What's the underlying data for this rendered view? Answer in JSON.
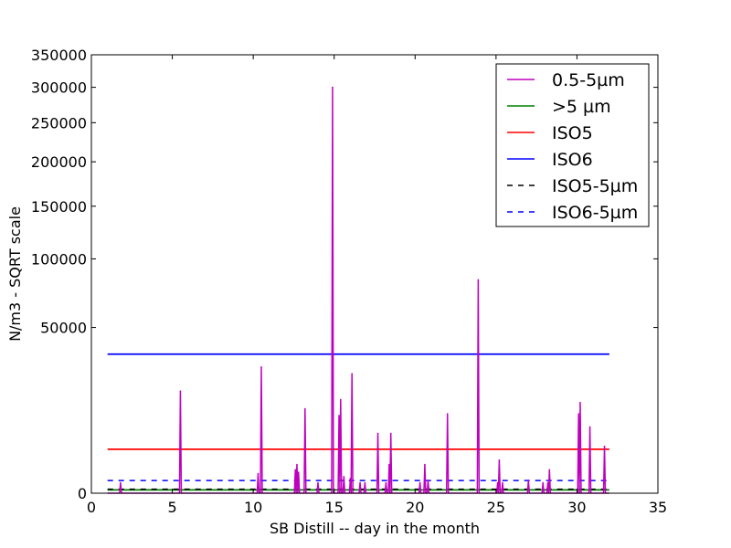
{
  "chart_data": {
    "type": "line",
    "xlabel": "SB Distill -- day in the month",
    "ylabel": "N/m3 - SQRT scale",
    "xlim": [
      0,
      35
    ],
    "ylim": [
      0,
      350000
    ],
    "y_scale": "sqrt",
    "xticks": [
      "0",
      "5",
      "10",
      "15",
      "20",
      "25",
      "30",
      "35"
    ],
    "yticks": [
      "0",
      "50000",
      "100000",
      "150000",
      "200000",
      "250000",
      "300000",
      "350000"
    ],
    "xtick_values": [
      0,
      5,
      10,
      15,
      20,
      25,
      30,
      35
    ],
    "ytick_values": [
      0,
      50000,
      100000,
      150000,
      200000,
      250000,
      300000,
      350000
    ],
    "grid": false,
    "legend_position": "top-right",
    "colors": {
      "particles_0_5_5um": "#bf00bf",
      "particles_gt_5um": "#008000",
      "iso5": "#ff0000",
      "iso6": "#0000ff",
      "iso5_5um": "#000000",
      "iso6_5um": "#0000ff"
    },
    "series": [
      {
        "name": "0.5-5µm",
        "key": "particles_0_5_5um",
        "style": "spikes",
        "baseline": 0,
        "points": [
          [
            1.8,
            200
          ],
          [
            5.5,
            19000
          ],
          [
            10.3,
            700
          ],
          [
            10.5,
            29000
          ],
          [
            12.6,
            1000
          ],
          [
            12.7,
            1500
          ],
          [
            12.8,
            800
          ],
          [
            13.2,
            13000
          ],
          [
            14.0,
            200
          ],
          [
            14.9,
            300000
          ],
          [
            15.3,
            11000
          ],
          [
            15.4,
            16000
          ],
          [
            15.6,
            500
          ],
          [
            16.0,
            400
          ],
          [
            16.1,
            26000
          ],
          [
            16.6,
            200
          ],
          [
            16.9,
            200
          ],
          [
            17.7,
            6500
          ],
          [
            18.2,
            200
          ],
          [
            18.4,
            1500
          ],
          [
            18.5,
            6500
          ],
          [
            20.3,
            200
          ],
          [
            20.6,
            1500
          ],
          [
            20.8,
            300
          ],
          [
            22.0,
            11500
          ],
          [
            23.9,
            83000
          ],
          [
            25.1,
            200
          ],
          [
            25.2,
            2000
          ],
          [
            25.4,
            200
          ],
          [
            27.0,
            300
          ],
          [
            27.9,
            200
          ],
          [
            28.2,
            200
          ],
          [
            28.3,
            1000
          ],
          [
            30.1,
            11500
          ],
          [
            30.2,
            15000
          ],
          [
            30.8,
            8000
          ],
          [
            31.7,
            4000
          ]
        ]
      },
      {
        "name": ">5 µm",
        "key": "particles_gt_5um",
        "style": "solid",
        "x": [
          1,
          32
        ],
        "y": [
          20,
          20
        ]
      },
      {
        "name": "ISO5",
        "key": "iso5",
        "style": "solid",
        "x": [
          1,
          32
        ],
        "y": [
          3520,
          3520
        ]
      },
      {
        "name": "ISO6",
        "key": "iso6",
        "style": "solid",
        "x": [
          1,
          32
        ],
        "y": [
          35200,
          35200
        ]
      },
      {
        "name": "ISO5-5µm",
        "key": "iso5_5um",
        "style": "dashed",
        "x": [
          1,
          32
        ],
        "y": [
          29,
          29
        ]
      },
      {
        "name": "ISO6-5µm",
        "key": "iso6_5um",
        "style": "dashed",
        "x": [
          1,
          32
        ],
        "y": [
          293,
          293
        ]
      }
    ]
  }
}
